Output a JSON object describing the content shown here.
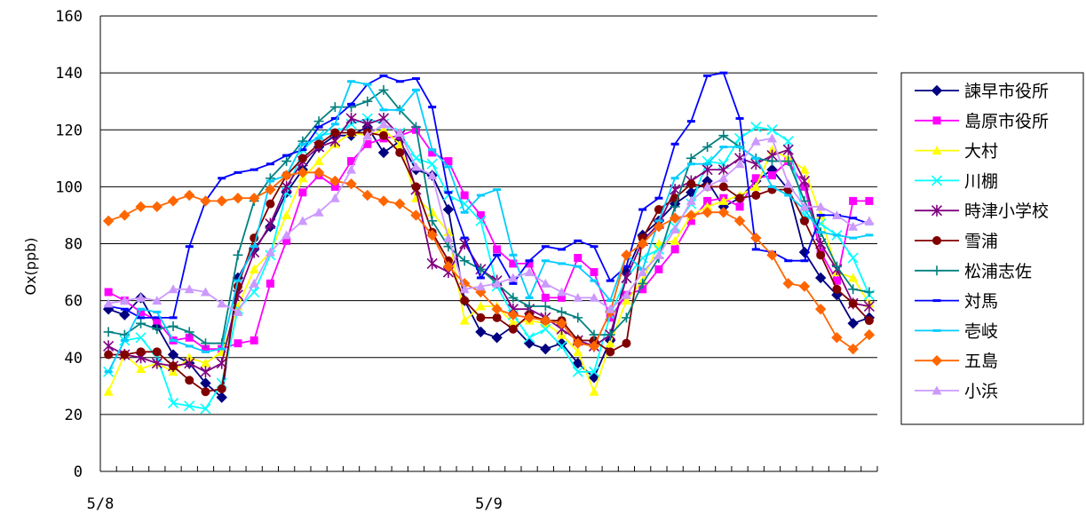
{
  "chart_data": {
    "type": "line",
    "ylabel": "Ox(ppb)",
    "ylim": [
      0,
      160
    ],
    "yticks": [
      "0",
      "20",
      "40",
      "60",
      "80",
      "100",
      "120",
      "140",
      "160"
    ],
    "xticks": [
      "5/8",
      "5/9"
    ],
    "x": [
      "1",
      "2",
      "3",
      "4",
      "5",
      "6",
      "7",
      "8",
      "9",
      "10",
      "11",
      "12",
      "13",
      "14",
      "15",
      "16",
      "17",
      "18",
      "19",
      "20",
      "21",
      "22",
      "23",
      "24",
      "25",
      "26",
      "27",
      "28",
      "29",
      "30",
      "31",
      "32",
      "33",
      "34",
      "35",
      "36",
      "37",
      "38",
      "39",
      "40",
      "41",
      "42",
      "43",
      "44",
      "45",
      "46",
      "47",
      "48"
    ],
    "grid": "horizontal",
    "legend_position": "right",
    "series": [
      {
        "name": "諫早市役所",
        "color": "#000080",
        "marker": "diamond",
        "values": [
          57,
          55,
          61,
          51,
          41,
          38,
          31,
          26,
          68,
          78,
          86,
          98,
          106,
          114,
          118,
          118,
          121,
          112,
          116,
          106,
          104,
          92,
          60,
          49,
          47,
          51,
          45,
          43,
          45,
          38,
          33,
          46,
          70,
          83,
          88,
          94,
          98,
          102,
          93,
          96,
          102,
          106,
          99,
          77,
          68,
          62,
          52,
          54
        ]
      },
      {
        "name": "島原市役所",
        "color": "#ff00ff",
        "marker": "square",
        "values": [
          63,
          60,
          56,
          53,
          46,
          47,
          43,
          43,
          45,
          46,
          66,
          81,
          98,
          104,
          100,
          109,
          115,
          117,
          118,
          120,
          112,
          109,
          97,
          90,
          78,
          73,
          73,
          61,
          61,
          75,
          70,
          54,
          62,
          64,
          71,
          78,
          88,
          95,
          96,
          93,
          103,
          104,
          109,
          100,
          77,
          67,
          95,
          95
        ]
      },
      {
        "name": "大村",
        "color": "#ffff00",
        "marker": "triangle",
        "values": [
          28,
          41,
          36,
          38,
          35,
          40,
          38,
          42,
          58,
          71,
          77,
          90,
          103,
          109,
          115,
          119,
          118,
          120,
          115,
          96,
          91,
          84,
          53,
          58,
          58,
          52,
          53,
          52,
          48,
          42,
          28,
          45,
          60,
          67,
          80,
          81,
          90,
          93,
          95,
          97,
          100,
          113,
          110,
          106,
          90,
          70,
          68,
          59
        ]
      },
      {
        "name": "川棚",
        "color": "#00ffff",
        "marker": "x",
        "values": [
          35,
          46,
          47,
          40,
          24,
          23,
          22,
          31,
          57,
          63,
          76,
          98,
          113,
          118,
          119,
          122,
          124,
          122,
          119,
          110,
          108,
          97,
          94,
          88,
          65,
          55,
          47,
          50,
          44,
          35,
          35,
          55,
          68,
          75,
          78,
          86,
          94,
          109,
          108,
          117,
          121,
          120,
          116,
          90,
          87,
          83,
          75,
          62
        ]
      },
      {
        "name": "時津小学校",
        "color": "#800080",
        "marker": "star",
        "values": [
          44,
          41,
          40,
          38,
          37,
          38,
          35,
          38,
          62,
          77,
          87,
          100,
          109,
          114,
          116,
          124,
          122,
          124,
          118,
          99,
          73,
          70,
          80,
          71,
          67,
          57,
          57,
          54,
          50,
          46,
          44,
          48,
          68,
          81,
          87,
          99,
          102,
          106,
          106,
          110,
          108,
          111,
          113,
          102,
          80,
          71,
          59,
          58
        ]
      },
      {
        "name": "雪浦",
        "color": "#800000",
        "marker": "circle",
        "values": [
          41,
          41,
          42,
          42,
          37,
          32,
          28,
          29,
          65,
          82,
          94,
          104,
          110,
          115,
          119,
          119,
          119,
          118,
          112,
          100,
          84,
          74,
          60,
          54,
          54,
          50,
          55,
          53,
          53,
          46,
          46,
          42,
          45,
          82,
          92,
          96,
          101,
          100,
          100,
          96,
          97,
          99,
          99,
          88,
          76,
          64,
          59,
          53
        ]
      },
      {
        "name": "松浦志佐",
        "color": "#008080",
        "marker": "plus",
        "values": [
          49,
          48,
          52,
          50,
          51,
          49,
          45,
          45,
          76,
          95,
          103,
          109,
          116,
          123,
          128,
          128,
          130,
          134,
          127,
          121,
          88,
          79,
          74,
          71,
          66,
          61,
          58,
          58,
          56,
          54,
          48,
          48,
          54,
          66,
          75,
          93,
          110,
          114,
          118,
          114,
          110,
          109,
          109,
          95,
          84,
          72,
          64,
          63
        ]
      },
      {
        "name": "対馬",
        "color": "#0000ff",
        "marker": "dash",
        "values": [
          58,
          57,
          54,
          54,
          54,
          79,
          95,
          103,
          105,
          106,
          108,
          111,
          113,
          121,
          124,
          129,
          136,
          139,
          137,
          138,
          128,
          98,
          82,
          68,
          76,
          66,
          74,
          79,
          78,
          81,
          79,
          67,
          72,
          92,
          96,
          115,
          123,
          139,
          140,
          124,
          78,
          77,
          74,
          74,
          90,
          90,
          89,
          87
        ]
      },
      {
        "name": "壱岐",
        "color": "#00ccff",
        "marker": "dash",
        "values": [
          35,
          46,
          57,
          56,
          46,
          44,
          42,
          43,
          67,
          79,
          102,
          104,
          115,
          117,
          122,
          137,
          136,
          127,
          127,
          134,
          113,
          107,
          91,
          97,
          99,
          76,
          61,
          74,
          73,
          72,
          67,
          60,
          76,
          71,
          88,
          103,
          108,
          108,
          114,
          114,
          110,
          100,
          97,
          92,
          84,
          83,
          82,
          83
        ]
      },
      {
        "name": "五島",
        "color": "#ff6600",
        "marker": "diamond",
        "values": [
          88,
          90,
          93,
          93,
          95,
          97,
          95,
          95,
          96,
          96,
          99,
          104,
          105,
          105,
          102,
          101,
          97,
          95,
          94,
          90,
          83,
          72,
          66,
          63,
          57,
          55,
          54,
          53,
          52,
          45,
          44,
          56,
          76,
          80,
          86,
          89,
          90,
          91,
          91,
          88,
          82,
          76,
          66,
          65,
          57,
          47,
          43,
          48
        ]
      },
      {
        "name": "小浜",
        "color": "#cc99ff",
        "marker": "triangle",
        "values": [
          59,
          60,
          61,
          60,
          64,
          64,
          63,
          59,
          56,
          66,
          77,
          83,
          88,
          91,
          96,
          106,
          118,
          122,
          119,
          107,
          104,
          82,
          64,
          65,
          66,
          68,
          70,
          66,
          63,
          61,
          61,
          57,
          62,
          70,
          76,
          85,
          95,
          100,
          103,
          108,
          116,
          117,
          101,
          93,
          93,
          90,
          86,
          88
        ]
      }
    ]
  }
}
